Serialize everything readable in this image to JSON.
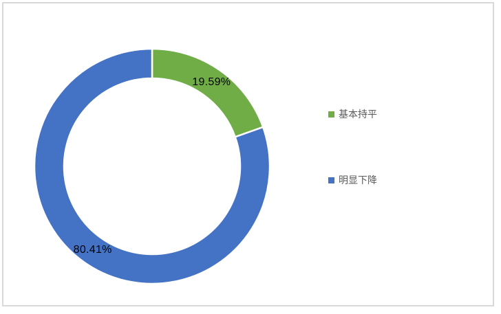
{
  "chart_data": {
    "type": "pie",
    "subtype": "donut",
    "title": "",
    "categories": [
      "基本持平",
      "明显下降"
    ],
    "values": [
      19.59,
      80.41
    ],
    "labels": [
      "19.59%",
      "80.41%"
    ],
    "colors": [
      "#70AD47",
      "#4472C4"
    ],
    "start_angle_deg": 0,
    "direction": "clockwise",
    "hole_ratio": 0.75,
    "separator_color": "#FFFFFF",
    "legend_position": "right",
    "legend": [
      {
        "label": "基本持平",
        "color": "#70AD47"
      },
      {
        "label": "明显下降",
        "color": "#4472C4"
      }
    ]
  },
  "frame": {
    "border_color": "#D9D9D9",
    "background": "#FFFFFF",
    "label_color": "#000000",
    "legend_text_color": "#595959"
  }
}
